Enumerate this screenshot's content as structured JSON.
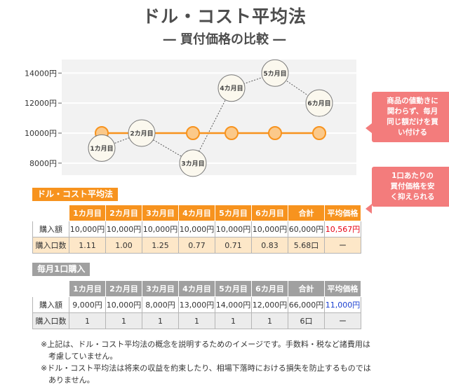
{
  "title": "ドル・コスト平均法",
  "subtitle": "― 買付価格の比較 ―",
  "colors": {
    "line": "#f7931e",
    "marker_fill": "#fbc98a",
    "bubble_fill": "#fbf8ee",
    "bubble_stroke": "#7a7a7a",
    "callout": "#f37c7c",
    "plot_bg": "#f2f2f2"
  },
  "chart_data": {
    "type": "line",
    "x": [
      "1カ月目",
      "2カ月目",
      "3カ月目",
      "4カ月目",
      "5カ月目",
      "6カ月目"
    ],
    "series": [
      {
        "values": [
          10000,
          10000,
          10000,
          10000,
          10000,
          10000
        ],
        "style": "solid-orange-circles"
      },
      {
        "values": [
          9000,
          10000,
          8000,
          13000,
          14000,
          12000
        ],
        "style": "dotted-labeled-bubbles"
      }
    ],
    "y_ticks": [
      "8000円",
      "10000円",
      "12000円",
      "14000円"
    ],
    "y_tick_values": [
      8000,
      10000,
      12000,
      14000
    ],
    "ylim": [
      7200,
      14900
    ],
    "grid": "horizontal-white"
  },
  "callouts": {
    "top": "商品の値動きに\n関わらず、毎月\n同じ額だけを買\nい付ける",
    "bottom": "1口あたりの\n買付価格を安\nく抑えられる"
  },
  "table1": {
    "tag": "ドル・コスト平均法",
    "headers": [
      "",
      "1カ月目",
      "2カ月目",
      "3カ月目",
      "4カ月目",
      "5カ月目",
      "6カ月目",
      "合計",
      "平均価格"
    ],
    "row1": [
      "購入額",
      "10,000円",
      "10,000円",
      "10,000円",
      "10,000円",
      "10,000円",
      "10,000円",
      "60,000円",
      "10,567円"
    ],
    "row2": [
      "購入口数",
      "1.11",
      "1.00",
      "1.25",
      "0.77",
      "0.71",
      "0.83",
      "5.68口",
      "ー"
    ]
  },
  "table2": {
    "tag": "毎月1口購入",
    "headers": [
      "",
      "1カ月目",
      "2カ月目",
      "3カ月目",
      "4カ月目",
      "5カ月目",
      "6カ月目",
      "合計",
      "平均価格"
    ],
    "row1": [
      "購入額",
      "9,000円",
      "10,000円",
      "8,000円",
      "13,000円",
      "14,000円",
      "12,000円",
      "66,000円",
      "11,000円"
    ],
    "row2": [
      "購入口数",
      "1",
      "1",
      "1",
      "1",
      "1",
      "1",
      "6口",
      "ー"
    ]
  },
  "notes": [
    "※上記は、ドル・コスト平均法の概念を説明するためのイメージです。手数料・税など諸費用は",
    "　考慮していません。",
    "※ドル・コスト平均法は将来の収益を約束したり、相場下落時における損失を防止するものでは",
    "　ありません。"
  ]
}
